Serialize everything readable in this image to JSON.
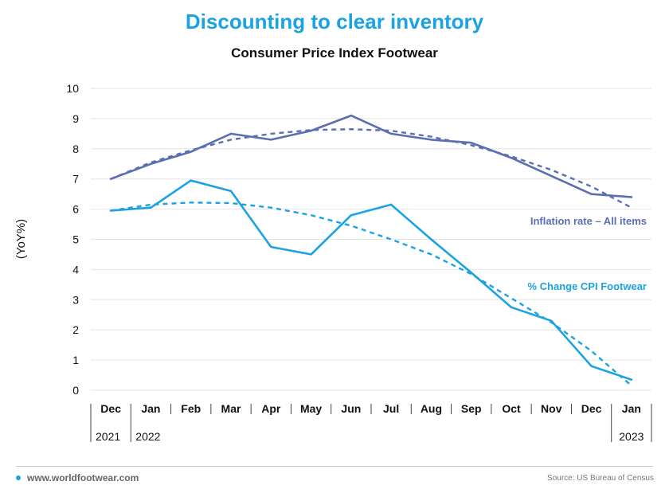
{
  "header": {
    "title": "Discounting to clear inventory",
    "subtitle": "Consumer Price Index Footwear"
  },
  "footer": {
    "site": "www.worldfootwear.com",
    "source": "Source: US Bureau of Census"
  },
  "colors": {
    "title": "#1aa3e0",
    "all_items": "#5b6fb0",
    "footwear": "#1aa3e0",
    "grid": "#e4e4e4"
  },
  "chart_data": {
    "type": "line",
    "ylabel": "(YoY%)",
    "ylim": [
      0,
      10
    ],
    "yticks": [
      "0",
      "1",
      "2",
      "3",
      "4",
      "5",
      "6",
      "7",
      "8",
      "9",
      "10"
    ],
    "categories": [
      "Dec",
      "Jan",
      "Feb",
      "Mar",
      "Apr",
      "May",
      "Jun",
      "Jul",
      "Aug",
      "Sep",
      "Oct",
      "Nov",
      "Dec",
      "Jan"
    ],
    "year_labels": [
      {
        "index": 0,
        "label": "2021"
      },
      {
        "index": 1,
        "label": "2022"
      },
      {
        "index": 13,
        "label": "2023"
      }
    ],
    "grid": true,
    "series": [
      {
        "name": "Inflation rate – All items",
        "color": "#5b6fb0",
        "values": [
          7.0,
          7.5,
          7.9,
          8.5,
          8.3,
          8.6,
          9.1,
          8.5,
          8.3,
          8.2,
          7.7,
          7.1,
          6.5,
          6.4
        ],
        "trend": [
          7.0,
          7.55,
          7.95,
          8.3,
          8.5,
          8.62,
          8.65,
          8.6,
          8.4,
          8.12,
          7.75,
          7.3,
          6.75,
          6.05
        ]
      },
      {
        "name": "% Change CPI Footwear",
        "color": "#1aa3e0",
        "values": [
          5.95,
          6.05,
          6.95,
          6.6,
          4.75,
          4.5,
          5.8,
          6.15,
          5.0,
          3.9,
          2.75,
          2.3,
          0.8,
          0.35
        ],
        "trend": [
          5.95,
          6.15,
          6.22,
          6.2,
          6.05,
          5.8,
          5.45,
          5.0,
          4.5,
          3.85,
          3.05,
          2.25,
          1.3,
          0.15
        ]
      }
    ]
  }
}
